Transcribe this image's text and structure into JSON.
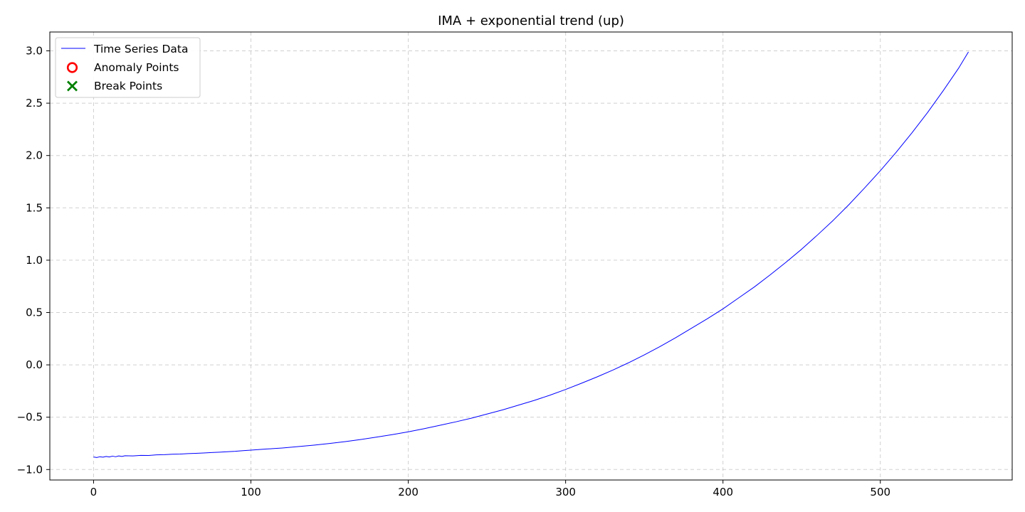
{
  "chart_data": {
    "type": "line",
    "title": "IMA + exponential trend (up)",
    "xlabel": "",
    "ylabel": "",
    "xlim": [
      -27.8,
      583.8
    ],
    "ylim": [
      -1.1,
      3.18
    ],
    "xticks": [
      0,
      100,
      200,
      300,
      400,
      500
    ],
    "yticks": [
      -1.0,
      -0.5,
      0.0,
      0.5,
      1.0,
      1.5,
      2.0,
      2.5,
      3.0
    ],
    "ytick_labels": [
      "−1.0",
      "−0.5",
      "0.0",
      "0.5",
      "1.0",
      "1.5",
      "2.0",
      "2.5",
      "3.0"
    ],
    "grid": true,
    "legend_position": "top-left",
    "series": [
      {
        "name": "Time Series Data",
        "color": "#0000ff",
        "x": [
          0,
          2,
          4,
          6,
          8,
          10,
          12,
          14,
          16,
          18,
          20,
          25,
          30,
          35,
          40,
          45,
          50,
          55,
          60,
          65,
          70,
          75,
          80,
          85,
          90,
          95,
          100,
          110,
          120,
          130,
          140,
          150,
          160,
          170,
          180,
          190,
          200,
          210,
          220,
          230,
          240,
          250,
          260,
          270,
          280,
          290,
          300,
          310,
          320,
          330,
          340,
          350,
          360,
          370,
          380,
          390,
          400,
          410,
          420,
          430,
          440,
          450,
          460,
          470,
          480,
          490,
          500,
          510,
          520,
          530,
          540,
          550,
          556
        ],
        "values": [
          -0.88,
          -0.885,
          -0.878,
          -0.882,
          -0.875,
          -0.88,
          -0.872,
          -0.878,
          -0.87,
          -0.875,
          -0.868,
          -0.87,
          -0.865,
          -0.866,
          -0.86,
          -0.858,
          -0.854,
          -0.852,
          -0.848,
          -0.845,
          -0.842,
          -0.838,
          -0.834,
          -0.83,
          -0.826,
          -0.82,
          -0.815,
          -0.804,
          -0.794,
          -0.781,
          -0.767,
          -0.751,
          -0.733,
          -0.713,
          -0.69,
          -0.666,
          -0.64,
          -0.61,
          -0.578,
          -0.545,
          -0.51,
          -0.47,
          -0.43,
          -0.385,
          -0.34,
          -0.29,
          -0.235,
          -0.176,
          -0.115,
          -0.05,
          0.02,
          0.095,
          0.175,
          0.26,
          0.35,
          0.44,
          0.535,
          0.64,
          0.745,
          0.86,
          0.98,
          1.105,
          1.24,
          1.38,
          1.53,
          1.69,
          1.855,
          2.03,
          2.215,
          2.41,
          2.62,
          2.84,
          2.99
        ]
      },
      {
        "name": "Anomaly Points",
        "color": "#ff0000",
        "x": [],
        "values": []
      },
      {
        "name": "Break Points",
        "color": "#008000",
        "x": [],
        "values": []
      }
    ]
  }
}
